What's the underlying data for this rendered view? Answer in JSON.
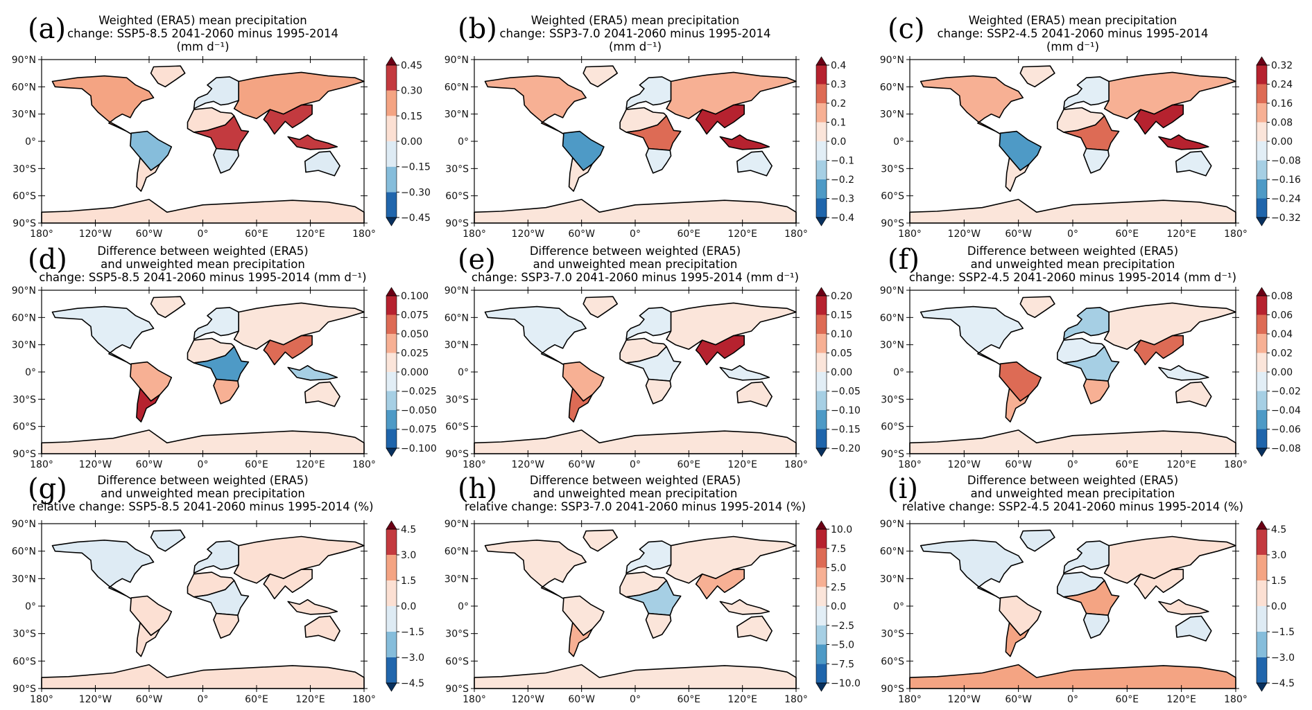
{
  "figure": {
    "colormap": "RdBu_r (discrete)",
    "land_mask_only": true,
    "ocean_color": "#ffffff",
    "coastline_color": "#000000"
  },
  "chart_data": [
    {
      "id": "a",
      "type": "heatmap",
      "letter": "(a)",
      "title_lines": [
        "Weighted (ERA5) mean precipitation",
        "change: SSP5-8.5 2041-2060 minus 1995-2014",
        "(mm d⁻¹)"
      ],
      "xticks": [
        "180°",
        "120°W",
        "60°W",
        "0°",
        "60°E",
        "120°E",
        "180°"
      ],
      "yticks": [
        "90°N",
        "60°N",
        "30°N",
        "0°",
        "30°S",
        "60°S",
        "90°S"
      ],
      "colorbar": {
        "ticks": [
          "0.45",
          "0.30",
          "0.15",
          "0.00",
          "−0.15",
          "−0.30",
          "−0.45"
        ],
        "levels": [
          -0.45,
          -0.3,
          -0.15,
          0,
          0.15,
          0.3,
          0.45
        ],
        "extend": "both"
      },
      "regions": {
        "north_america": 0.2,
        "greenland": 0.05,
        "south_america": -0.25,
        "southern_south_america": 0.1,
        "africa": 0.1,
        "central_africa": 0.35,
        "southern_africa": -0.05,
        "europe": -0.05,
        "asia": 0.15,
        "east_asia": 0.3,
        "maritime": 0.4,
        "australia": -0.05,
        "antarctica": 0.05
      }
    },
    {
      "id": "b",
      "type": "heatmap",
      "letter": "(b)",
      "title_lines": [
        "Weighted (ERA5) mean precipitation",
        "change: SSP3-7.0 2041-2060 minus 1995-2014",
        "(mm d⁻¹)"
      ],
      "xticks": [
        "180°",
        "120°W",
        "60°W",
        "0°",
        "60°E",
        "120°E",
        "180°"
      ],
      "yticks": [
        "90°N",
        "60°N",
        "30°N",
        "0°",
        "30°S",
        "60°S",
        "90°S"
      ],
      "colorbar": {
        "ticks": [
          "0.4",
          "0.3",
          "0.2",
          "0.1",
          "0.0",
          "−0.1",
          "−0.2",
          "−0.3",
          "−0.4"
        ],
        "levels": [
          -0.4,
          -0.3,
          -0.2,
          -0.1,
          0,
          0.1,
          0.2,
          0.3,
          0.4
        ],
        "extend": "both"
      },
      "regions": {
        "north_america": 0.15,
        "greenland": 0.05,
        "south_america": -0.25,
        "southern_south_america": 0.05,
        "africa": 0.05,
        "central_africa": 0.25,
        "southern_africa": -0.05,
        "europe": -0.05,
        "asia": 0.1,
        "east_asia": 0.3,
        "maritime": 0.35,
        "australia": -0.05,
        "antarctica": 0.05
      }
    },
    {
      "id": "c",
      "type": "heatmap",
      "letter": "(c)",
      "title_lines": [
        "Weighted (ERA5) mean precipitation",
        "change: SSP2-4.5 2041-2060 minus 1995-2014",
        "(mm d⁻¹)"
      ],
      "xticks": [
        "180°",
        "120°W",
        "60°W",
        "0°",
        "60°E",
        "120°E",
        "180°"
      ],
      "yticks": [
        "90°N",
        "60°N",
        "30°N",
        "0°",
        "30°S",
        "60°S",
        "90°S"
      ],
      "colorbar": {
        "ticks": [
          "0.32",
          "0.24",
          "0.16",
          "0.08",
          "0.00",
          "−0.08",
          "−0.16",
          "−0.24",
          "−0.32"
        ],
        "levels": [
          -0.32,
          -0.24,
          -0.16,
          -0.08,
          0,
          0.08,
          0.16,
          0.24,
          0.32
        ],
        "extend": "both"
      },
      "regions": {
        "north_america": 0.12,
        "greenland": 0.04,
        "south_america": -0.2,
        "southern_south_america": 0.04,
        "africa": 0.04,
        "central_africa": 0.2,
        "southern_africa": -0.04,
        "europe": -0.04,
        "asia": 0.1,
        "east_asia": 0.26,
        "maritime": 0.3,
        "australia": -0.04,
        "antarctica": 0.04
      }
    },
    {
      "id": "d",
      "type": "heatmap",
      "letter": "(d)",
      "title_lines": [
        "Difference between weighted (ERA5)",
        "and unweighted mean precipitation",
        "change: SSP5-8.5 2041-2060 minus 1995-2014 (mm d⁻¹)"
      ],
      "xticks": [
        "180°",
        "120°W",
        "60°W",
        "0°",
        "60°E",
        "120°E",
        "180°"
      ],
      "yticks": [
        "90°N",
        "60°N",
        "30°N",
        "0°",
        "30°S",
        "60°S",
        "90°S"
      ],
      "colorbar": {
        "ticks": [
          "0.100",
          "0.075",
          "0.050",
          "0.025",
          "0.000",
          "−0.025",
          "−0.050",
          "−0.075",
          "−0.100"
        ],
        "levels": [
          -0.1,
          -0.075,
          -0.05,
          -0.025,
          0,
          0.025,
          0.05,
          0.075,
          0.1
        ],
        "extend": "both"
      },
      "regions": {
        "north_america": -0.01,
        "greenland": 0.01,
        "south_america": 0.04,
        "southern_south_america": 0.08,
        "africa": 0.01,
        "central_africa": -0.06,
        "southern_africa": 0.03,
        "europe": -0.02,
        "asia": 0.01,
        "east_asia": 0.05,
        "maritime": -0.03,
        "australia": 0.01,
        "antarctica": 0.01
      }
    },
    {
      "id": "e",
      "type": "heatmap",
      "letter": "(e)",
      "title_lines": [
        "Difference between weighted (ERA5)",
        "and unweighted mean precipitation",
        "change: SSP3-7.0 2041-2060 minus 1995-2014 (mm d⁻¹)"
      ],
      "xticks": [
        "180°",
        "120°W",
        "60°W",
        "0°",
        "60°E",
        "120°E",
        "180°"
      ],
      "yticks": [
        "90°N",
        "60°N",
        "30°N",
        "0°",
        "30°S",
        "60°S",
        "90°S"
      ],
      "colorbar": {
        "ticks": [
          "0.20",
          "0.15",
          "0.10",
          "0.05",
          "0.00",
          "−0.05",
          "−0.10",
          "−0.15",
          "−0.20"
        ],
        "levels": [
          -0.2,
          -0.15,
          -0.1,
          -0.05,
          0,
          0.05,
          0.1,
          0.15,
          0.2
        ],
        "extend": "both"
      },
      "regions": {
        "north_america": -0.02,
        "greenland": 0.01,
        "south_america": 0.06,
        "southern_south_america": 0.12,
        "africa": 0.02,
        "central_africa": -0.04,
        "southern_africa": 0.03,
        "europe": -0.03,
        "asia": 0.02,
        "east_asia": 0.16,
        "maritime": -0.04,
        "australia": 0.01,
        "antarctica": 0.01
      }
    },
    {
      "id": "f",
      "type": "heatmap",
      "letter": "(f)",
      "title_lines": [
        "Difference between weighted (ERA5)",
        "and unweighted mean precipitation",
        "change: SSP2-4.5 2041-2060 minus 1995-2014 (mm d⁻¹)"
      ],
      "xticks": [
        "180°",
        "120°W",
        "60°W",
        "0°",
        "60°E",
        "120°E",
        "180°"
      ],
      "yticks": [
        "90°N",
        "60°N",
        "30°N",
        "0°",
        "30°S",
        "60°S",
        "90°S"
      ],
      "colorbar": {
        "ticks": [
          "0.08",
          "0.06",
          "0.04",
          "0.02",
          "0.00",
          "−0.02",
          "−0.04",
          "−0.06",
          "−0.08"
        ],
        "levels": [
          -0.08,
          -0.06,
          -0.04,
          -0.02,
          0,
          0.02,
          0.04,
          0.06,
          0.08
        ],
        "extend": "both"
      },
      "regions": {
        "north_america": -0.01,
        "greenland": 0.005,
        "south_america": 0.05,
        "southern_south_america": 0.03,
        "africa": -0.01,
        "central_africa": -0.03,
        "southern_africa": 0.03,
        "europe": -0.03,
        "asia": 0.01,
        "east_asia": 0.05,
        "maritime": -0.01,
        "australia": 0.005,
        "antarctica": 0.005
      }
    },
    {
      "id": "g",
      "type": "heatmap",
      "letter": "(g)",
      "title_lines": [
        "Difference between weighted (ERA5)",
        "and unweighted mean precipitation",
        "relative change: SSP5-8.5 2041-2060 minus 1995-2014 (%)"
      ],
      "xticks": [
        "180°",
        "120°W",
        "60°W",
        "0°",
        "60°E",
        "120°E",
        "180°"
      ],
      "yticks": [
        "90°N",
        "60°N",
        "30°N",
        "0°",
        "30°S",
        "60°S",
        "90°S"
      ],
      "colorbar": {
        "ticks": [
          "4.5",
          "3.0",
          "1.5",
          "0.0",
          "−1.5",
          "−3.0",
          "−4.5"
        ],
        "levels": [
          -4.5,
          -3,
          -1.5,
          0,
          1.5,
          3,
          4.5
        ],
        "extend": "both"
      },
      "regions": {
        "north_america": -0.5,
        "greenland": -0.5,
        "south_america": 0.8,
        "southern_south_america": 1.0,
        "africa": 0.5,
        "central_africa": -0.5,
        "southern_africa": 0.5,
        "europe": -1.0,
        "asia": 0.8,
        "east_asia": 0.5,
        "maritime": 0.3,
        "australia": 0.3,
        "antarctica": 1.2
      }
    },
    {
      "id": "h",
      "type": "heatmap",
      "letter": "(h)",
      "title_lines": [
        "Difference between weighted (ERA5)",
        "and unweighted mean precipitation",
        "relative change: SSP3-7.0 2041-2060 minus 1995-2014 (%)"
      ],
      "xticks": [
        "180°",
        "120°W",
        "60°W",
        "0°",
        "60°E",
        "120°E",
        "180°"
      ],
      "yticks": [
        "90°N",
        "60°N",
        "30°N",
        "0°",
        "30°S",
        "60°S",
        "90°S"
      ],
      "colorbar": {
        "ticks": [
          "10.0",
          "7.5",
          "5.0",
          "2.5",
          "0.0",
          "−2.5",
          "−5.0",
          "−7.5",
          "−10.0"
        ],
        "levels": [
          -10,
          -7.5,
          -5,
          -2.5,
          0,
          2.5,
          5,
          7.5,
          10
        ],
        "extend": "both"
      },
      "regions": {
        "north_america": 1.0,
        "greenland": 1.0,
        "south_america": 1.5,
        "southern_south_america": 3.0,
        "africa": 1.0,
        "central_africa": -3.0,
        "southern_africa": 1.0,
        "europe": -2.0,
        "asia": 2.0,
        "east_asia": 3.0,
        "maritime": 1.0,
        "australia": 1.0,
        "antarctica": 1.5
      }
    },
    {
      "id": "i",
      "type": "heatmap",
      "letter": "(i)",
      "title_lines": [
        "Difference between weighted (ERA5)",
        "and unweighted mean precipitation",
        "relative change: SSP2-4.5 2041-2060 minus 1995-2014 (%)"
      ],
      "xticks": [
        "180°",
        "120°W",
        "60°W",
        "0°",
        "60°E",
        "120°E",
        "180°"
      ],
      "yticks": [
        "90°N",
        "60°N",
        "30°N",
        "0°",
        "30°S",
        "60°S",
        "90°S"
      ],
      "colorbar": {
        "ticks": [
          "4.5",
          "3.0",
          "1.5",
          "0.0",
          "−1.5",
          "−3.0",
          "−4.5"
        ],
        "levels": [
          -4.5,
          -3,
          -1.5,
          0,
          1.5,
          3,
          4.5
        ],
        "extend": "both"
      },
      "regions": {
        "north_america": -0.5,
        "greenland": -0.5,
        "south_america": 0.8,
        "southern_south_america": 1.5,
        "africa": -0.5,
        "central_africa": 2.0,
        "southern_africa": -0.3,
        "europe": -1.0,
        "asia": 0.5,
        "east_asia": 0.8,
        "maritime": 0.3,
        "australia": -0.3,
        "antarctica": 1.5
      }
    }
  ]
}
